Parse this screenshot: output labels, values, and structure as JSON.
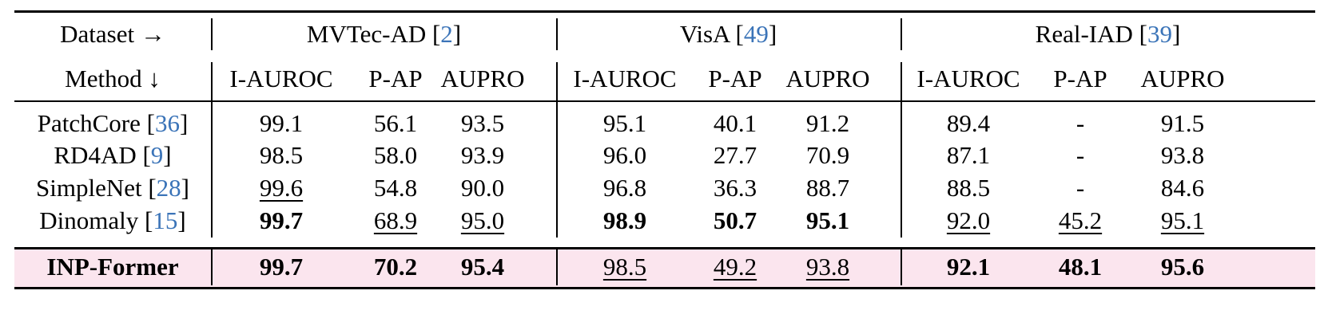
{
  "table": {
    "dataset_header": "Dataset →",
    "method_header": "Method ↓",
    "datasets": [
      {
        "name": "MVTec-AD",
        "ref": "2"
      },
      {
        "name": "VisA",
        "ref": "49"
      },
      {
        "name": "Real-IAD",
        "ref": "39"
      }
    ],
    "metrics": [
      "I-AUROC",
      "P-AP",
      "AUPRO",
      "I-AUROC",
      "P-AP",
      "AUPRO",
      "I-AUROC",
      "P-AP",
      "AUPRO"
    ],
    "rows": [
      {
        "method": "PatchCore",
        "ref": "36",
        "highlight": false,
        "cells": [
          {
            "v": "99.1"
          },
          {
            "v": "56.1"
          },
          {
            "v": "93.5"
          },
          {
            "v": "95.1"
          },
          {
            "v": "40.1"
          },
          {
            "v": "91.2"
          },
          {
            "v": "89.4"
          },
          {
            "v": "-"
          },
          {
            "v": "91.5"
          }
        ]
      },
      {
        "method": "RD4AD",
        "ref": "9",
        "highlight": false,
        "cells": [
          {
            "v": "98.5"
          },
          {
            "v": "58.0"
          },
          {
            "v": "93.9"
          },
          {
            "v": "96.0"
          },
          {
            "v": "27.7"
          },
          {
            "v": "70.9"
          },
          {
            "v": "87.1"
          },
          {
            "v": "-"
          },
          {
            "v": "93.8"
          }
        ]
      },
      {
        "method": "SimpleNet",
        "ref": "28",
        "highlight": false,
        "cells": [
          {
            "v": "99.6",
            "underline": true
          },
          {
            "v": "54.8"
          },
          {
            "v": "90.0"
          },
          {
            "v": "96.8"
          },
          {
            "v": "36.3"
          },
          {
            "v": "88.7"
          },
          {
            "v": "88.5"
          },
          {
            "v": "-"
          },
          {
            "v": "84.6"
          }
        ]
      },
      {
        "method": "Dinomaly",
        "ref": "15",
        "highlight": false,
        "cells": [
          {
            "v": "99.7",
            "bold": true
          },
          {
            "v": "68.9",
            "underline": true
          },
          {
            "v": "95.0",
            "underline": true
          },
          {
            "v": "98.9",
            "bold": true
          },
          {
            "v": "50.7",
            "bold": true
          },
          {
            "v": "95.1",
            "bold": true
          },
          {
            "v": "92.0",
            "underline": true
          },
          {
            "v": "45.2",
            "underline": true
          },
          {
            "v": "95.1",
            "underline": true
          }
        ]
      },
      {
        "method": "INP-Former",
        "ref": "",
        "highlight": true,
        "cells": [
          {
            "v": "99.7",
            "bold": true
          },
          {
            "v": "70.2",
            "bold": true
          },
          {
            "v": "95.4",
            "bold": true
          },
          {
            "v": "98.5",
            "underline": true
          },
          {
            "v": "49.2",
            "underline": true
          },
          {
            "v": "93.8",
            "underline": true
          },
          {
            "v": "92.1",
            "bold": true
          },
          {
            "v": "48.1",
            "bold": true
          },
          {
            "v": "95.6",
            "bold": true
          }
        ]
      }
    ],
    "highlight_color": "#fbe5ee",
    "ref_color": "#3b74b8"
  }
}
